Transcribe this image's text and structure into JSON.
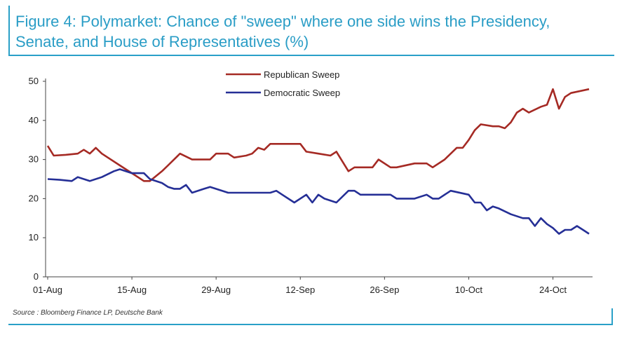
{
  "figure": {
    "title_line1": "Figure 4: Polymarket: Chance of \"sweep\" where one side wins the Presidency,",
    "title_line2": "Senate, and House of Representatives (%)",
    "source": "Source : Bloomberg Finance LP, Deutsche Bank",
    "accent_color": "#2aa0c8"
  },
  "chart_data": {
    "type": "line",
    "title": "Figure 4: Polymarket: Chance of \"sweep\" where one side wins the Presidency, Senate, and House of Representatives (%)",
    "xlabel": "",
    "ylabel": "",
    "ylim": [
      0,
      50
    ],
    "yticks": [
      0,
      10,
      20,
      30,
      40,
      50
    ],
    "xlim": [
      "2024-08-01",
      "2024-10-30"
    ],
    "xticks": [
      "01-Aug",
      "15-Aug",
      "29-Aug",
      "12-Sep",
      "26-Sep",
      "10-Oct",
      "24-Oct"
    ],
    "grid": false,
    "legend_position": "top-center",
    "series": [
      {
        "name": "Republican Sweep",
        "color": "#a52a24",
        "points": [
          [
            "2024-08-01",
            33.5
          ],
          [
            "2024-08-02",
            31
          ],
          [
            "2024-08-04",
            31.2
          ],
          [
            "2024-08-06",
            31.5
          ],
          [
            "2024-08-07",
            32.5
          ],
          [
            "2024-08-08",
            31.5
          ],
          [
            "2024-08-09",
            33
          ],
          [
            "2024-08-10",
            31.5
          ],
          [
            "2024-08-11",
            30.5
          ],
          [
            "2024-08-13",
            28.5
          ],
          [
            "2024-08-15",
            26.5
          ],
          [
            "2024-08-17",
            24.5
          ],
          [
            "2024-08-18",
            24.5
          ],
          [
            "2024-08-20",
            27
          ],
          [
            "2024-08-21",
            28.5
          ],
          [
            "2024-08-23",
            31.5
          ],
          [
            "2024-08-25",
            30
          ],
          [
            "2024-08-28",
            30
          ],
          [
            "2024-08-29",
            31.5
          ],
          [
            "2024-08-31",
            31.5
          ],
          [
            "2024-09-01",
            30.5
          ],
          [
            "2024-09-03",
            31
          ],
          [
            "2024-09-04",
            31.5
          ],
          [
            "2024-09-05",
            33
          ],
          [
            "2024-09-06",
            32.5
          ],
          [
            "2024-09-07",
            34
          ],
          [
            "2024-09-12",
            34
          ],
          [
            "2024-09-13",
            32
          ],
          [
            "2024-09-15",
            31.5
          ],
          [
            "2024-09-17",
            31
          ],
          [
            "2024-09-18",
            32
          ],
          [
            "2024-09-20",
            27
          ],
          [
            "2024-09-21",
            28
          ],
          [
            "2024-09-24",
            28
          ],
          [
            "2024-09-25",
            30
          ],
          [
            "2024-09-27",
            28
          ],
          [
            "2024-09-28",
            28
          ],
          [
            "2024-10-01",
            29
          ],
          [
            "2024-10-03",
            29
          ],
          [
            "2024-10-04",
            28
          ],
          [
            "2024-10-06",
            30
          ],
          [
            "2024-10-08",
            33
          ],
          [
            "2024-10-09",
            33
          ],
          [
            "2024-10-10",
            35
          ],
          [
            "2024-10-11",
            37.5
          ],
          [
            "2024-10-12",
            39
          ],
          [
            "2024-10-14",
            38.5
          ],
          [
            "2024-10-15",
            38.5
          ],
          [
            "2024-10-16",
            38
          ],
          [
            "2024-10-17",
            39.5
          ],
          [
            "2024-10-18",
            42
          ],
          [
            "2024-10-19",
            43
          ],
          [
            "2024-10-20",
            42
          ],
          [
            "2024-10-22",
            43.5
          ],
          [
            "2024-10-23",
            44
          ],
          [
            "2024-10-24",
            48
          ],
          [
            "2024-10-25",
            43
          ],
          [
            "2024-10-26",
            46
          ],
          [
            "2024-10-27",
            47
          ],
          [
            "2024-10-30",
            48
          ]
        ]
      },
      {
        "name": "Democratic Sweep",
        "color": "#252f96",
        "points": [
          [
            "2024-08-01",
            25
          ],
          [
            "2024-08-03",
            24.8
          ],
          [
            "2024-08-05",
            24.5
          ],
          [
            "2024-08-06",
            25.5
          ],
          [
            "2024-08-08",
            24.5
          ],
          [
            "2024-08-10",
            25.5
          ],
          [
            "2024-08-12",
            27
          ],
          [
            "2024-08-13",
            27.5
          ],
          [
            "2024-08-15",
            26.5
          ],
          [
            "2024-08-17",
            26.5
          ],
          [
            "2024-08-18",
            25
          ],
          [
            "2024-08-20",
            24
          ],
          [
            "2024-08-21",
            23
          ],
          [
            "2024-08-22",
            22.5
          ],
          [
            "2024-08-23",
            22.5
          ],
          [
            "2024-08-24",
            23.5
          ],
          [
            "2024-08-25",
            21.5
          ],
          [
            "2024-08-27",
            22.5
          ],
          [
            "2024-08-28",
            23
          ],
          [
            "2024-08-30",
            22
          ],
          [
            "2024-08-31",
            21.5
          ],
          [
            "2024-09-07",
            21.5
          ],
          [
            "2024-09-08",
            22
          ],
          [
            "2024-09-09",
            21
          ],
          [
            "2024-09-11",
            19
          ],
          [
            "2024-09-13",
            21
          ],
          [
            "2024-09-14",
            19
          ],
          [
            "2024-09-15",
            21
          ],
          [
            "2024-09-16",
            20
          ],
          [
            "2024-09-18",
            19
          ],
          [
            "2024-09-20",
            22
          ],
          [
            "2024-09-21",
            22
          ],
          [
            "2024-09-22",
            21
          ],
          [
            "2024-09-27",
            21
          ],
          [
            "2024-09-28",
            20
          ],
          [
            "2024-10-01",
            20
          ],
          [
            "2024-10-03",
            21
          ],
          [
            "2024-10-04",
            20
          ],
          [
            "2024-10-05",
            20
          ],
          [
            "2024-10-07",
            22
          ],
          [
            "2024-10-10",
            21
          ],
          [
            "2024-10-11",
            19
          ],
          [
            "2024-10-12",
            19
          ],
          [
            "2024-10-13",
            17
          ],
          [
            "2024-10-14",
            18
          ],
          [
            "2024-10-15",
            17.5
          ],
          [
            "2024-10-17",
            16
          ],
          [
            "2024-10-19",
            15
          ],
          [
            "2024-10-20",
            15
          ],
          [
            "2024-10-21",
            13
          ],
          [
            "2024-10-22",
            15
          ],
          [
            "2024-10-23",
            13.5
          ],
          [
            "2024-10-24",
            12.5
          ],
          [
            "2024-10-25",
            11
          ],
          [
            "2024-10-26",
            12
          ],
          [
            "2024-10-27",
            12
          ],
          [
            "2024-10-28",
            13
          ],
          [
            "2024-10-29",
            12
          ],
          [
            "2024-10-30",
            11
          ]
        ]
      }
    ]
  }
}
